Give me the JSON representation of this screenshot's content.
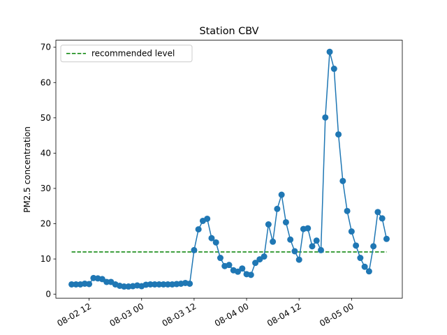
{
  "chart_data": {
    "type": "line",
    "title": "Station CBV",
    "ylabel": "PM2.5 concentration",
    "x": [
      "08-02 08",
      "08-02 09",
      "08-02 10",
      "08-02 11",
      "08-02 12",
      "08-02 13",
      "08-02 14",
      "08-02 15",
      "08-02 16",
      "08-02 17",
      "08-02 18",
      "08-02 19",
      "08-02 20",
      "08-02 21",
      "08-02 22",
      "08-02 23",
      "08-03 00",
      "08-03 01",
      "08-03 02",
      "08-03 03",
      "08-03 04",
      "08-03 05",
      "08-03 06",
      "08-03 07",
      "08-03 08",
      "08-03 09",
      "08-03 10",
      "08-03 11",
      "08-03 12",
      "08-03 13",
      "08-03 14",
      "08-03 15",
      "08-03 16",
      "08-03 17",
      "08-03 18",
      "08-03 19",
      "08-03 20",
      "08-03 21",
      "08-03 22",
      "08-03 23",
      "08-04 00",
      "08-04 01",
      "08-04 02",
      "08-04 03",
      "08-04 04",
      "08-04 05",
      "08-04 06",
      "08-04 07",
      "08-04 08",
      "08-04 09",
      "08-04 10",
      "08-04 11",
      "08-04 12",
      "08-04 13",
      "08-04 14",
      "08-04 15",
      "08-04 16",
      "08-04 17",
      "08-04 18",
      "08-04 19",
      "08-04 20",
      "08-04 21",
      "08-04 22",
      "08-04 23",
      "08-05 00",
      "08-05 01",
      "08-05 02",
      "08-05 03",
      "08-05 04",
      "08-05 05",
      "08-05 06",
      "08-05 07",
      "08-05 08"
    ],
    "series": [
      {
        "name": "PM2.5",
        "color": "#1f77b4",
        "values": [
          2.8,
          2.8,
          2.8,
          3.0,
          2.9,
          4.6,
          4.5,
          4.3,
          3.5,
          3.5,
          2.8,
          2.4,
          2.2,
          2.2,
          2.3,
          2.5,
          2.3,
          2.7,
          2.8,
          2.8,
          2.8,
          2.8,
          2.8,
          2.8,
          2.9,
          3.0,
          3.2,
          3.0,
          12.5,
          18.4,
          20.8,
          21.4,
          15.9,
          14.7,
          10.3,
          8.0,
          8.3,
          6.8,
          6.4,
          7.3,
          5.7,
          5.5,
          8.9,
          9.9,
          10.7,
          19.8,
          14.9,
          24.2,
          28.2,
          20.4,
          15.5,
          12.2,
          9.8,
          18.5,
          18.7,
          13.6,
          15.2,
          12.5,
          50.1,
          68.7,
          63.9,
          45.3,
          32.1,
          23.6,
          17.8,
          13.8,
          10.3,
          7.8,
          6.5,
          13.6,
          23.3,
          21.5,
          15.7
        ]
      }
    ],
    "reference_line": {
      "name": "recommended level",
      "value": 12,
      "color": "green",
      "style": "dashed"
    },
    "xlim": [
      "08-02 04:24",
      "08-05 11:36"
    ],
    "xticks": [
      "08-02 12",
      "08-03 00",
      "08-03 12",
      "08-04 00",
      "08-04 12",
      "08-05 00"
    ],
    "ylim": [
      -1.1,
      72.0
    ],
    "yticks": [
      0,
      10,
      20,
      30,
      40,
      50,
      60,
      70
    ],
    "legend": "upper left"
  }
}
